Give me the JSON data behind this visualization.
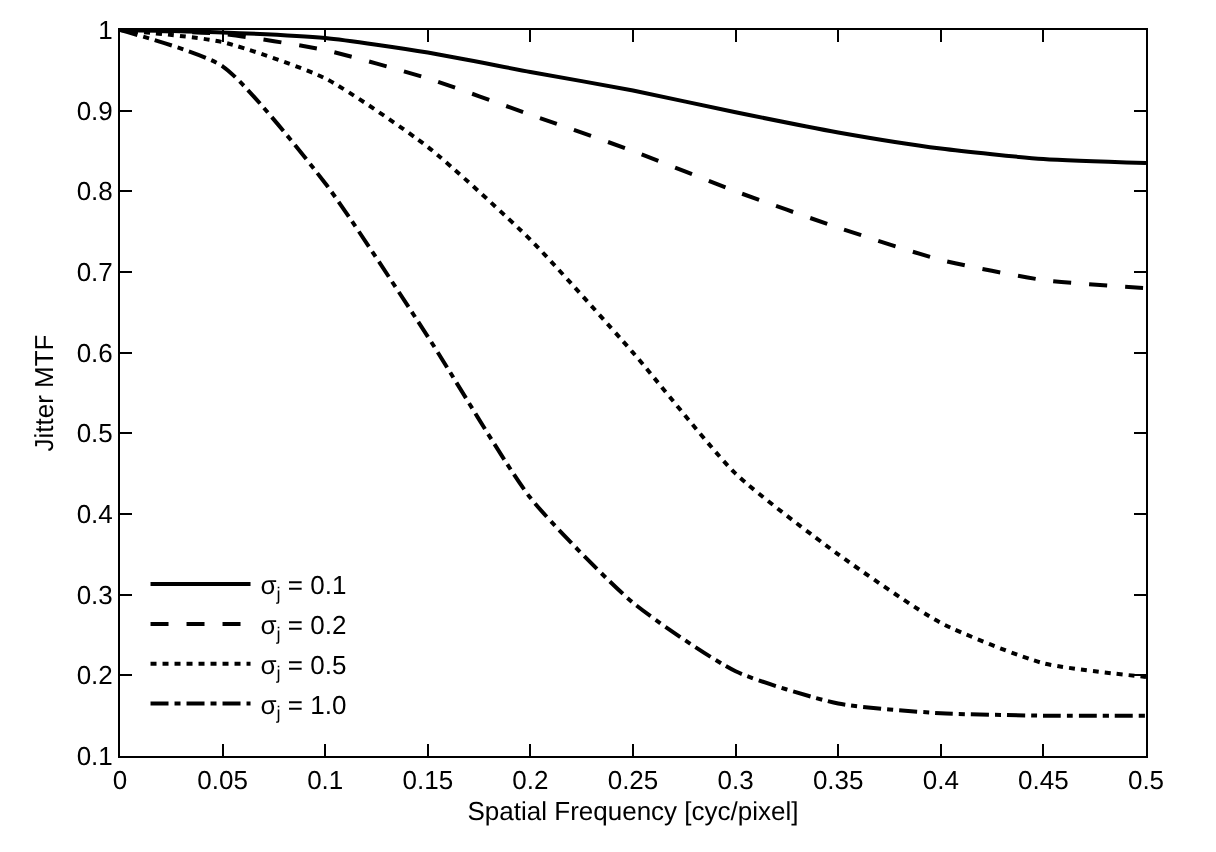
{
  "chart_data": {
    "type": "line",
    "xlabel": "Spatial Frequency [cyc/pixel]",
    "ylabel": "Jitter MTF",
    "x": [
      0,
      0.05,
      0.1,
      0.15,
      0.2,
      0.25,
      0.3,
      0.35,
      0.4,
      0.45,
      0.5
    ],
    "series": [
      {
        "name": "σ$_{j}$ = 0.1",
        "color": "#000000",
        "line_style": "solid",
        "values": [
          1,
          0.997,
          0.99,
          0.972,
          0.948,
          0.925,
          0.898,
          0.873,
          0.853,
          0.84,
          0.835
        ]
      },
      {
        "name": "σ$_{j}$ = 0.2",
        "color": "#000000",
        "line_style": "dashed",
        "values": [
          1,
          0.995,
          0.975,
          0.94,
          0.895,
          0.85,
          0.8,
          0.755,
          0.715,
          0.69,
          0.68
        ]
      },
      {
        "name": "σ$_{j}$ = 0.5",
        "color": "#000000",
        "line_style": "dotted",
        "values": [
          1,
          0.985,
          0.94,
          0.855,
          0.74,
          0.6,
          0.45,
          0.35,
          0.265,
          0.215,
          0.198
        ]
      },
      {
        "name": "σ$_{j}$ = 1.0",
        "color": "#000000",
        "line_style": "dashdot",
        "values": [
          1,
          0.955,
          0.81,
          0.62,
          0.42,
          0.29,
          0.205,
          0.165,
          0.153,
          0.15,
          0.15
        ]
      }
    ],
    "xlim": [
      0,
      0.5
    ],
    "xticks": [
      0,
      0.05,
      0.1,
      0.15,
      0.2,
      0.25,
      0.3,
      0.35,
      0.4,
      0.45,
      0.5
    ],
    "ylim": [
      0.1,
      1
    ],
    "yticks": [
      0.1,
      0.2,
      0.3,
      0.4,
      0.5,
      0.6,
      0.7,
      0.8,
      0.9,
      1
    ],
    "legend": "bottom left",
    "marker": "none"
  }
}
